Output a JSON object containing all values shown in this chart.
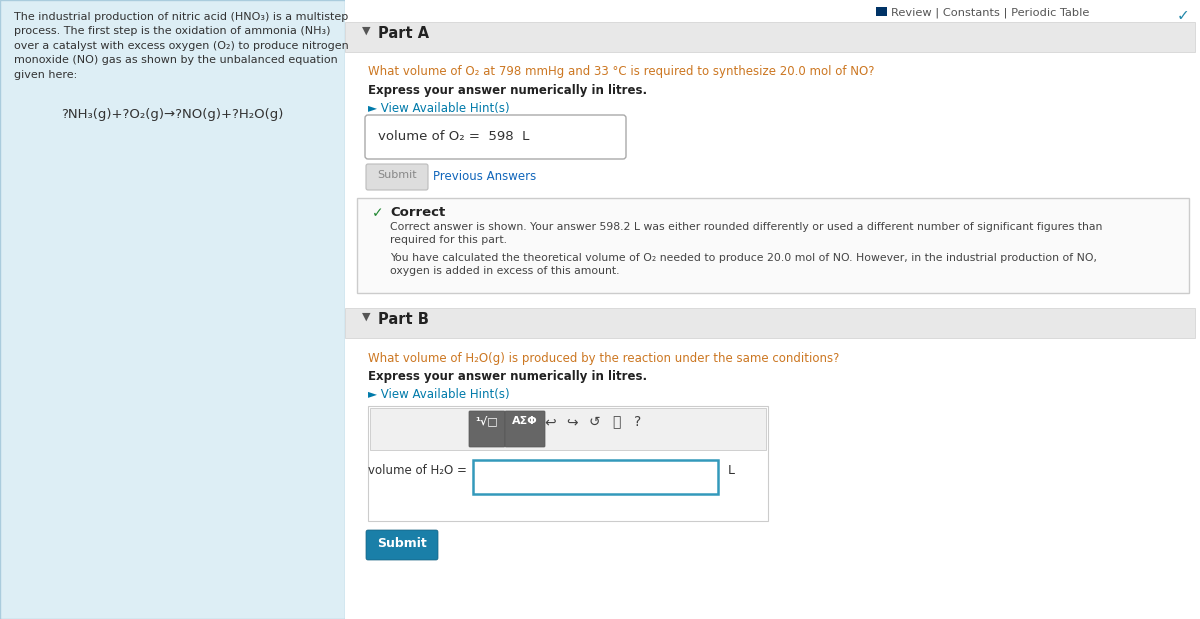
{
  "fig_w": 12.0,
  "fig_h": 6.19,
  "dpi": 100,
  "left_panel_bg": "#ddeef5",
  "left_panel_border": "#aaccdd",
  "right_bg": "#ffffff",
  "outer_bg": "#f0f0f0",
  "section_header_bg": "#e8e8e8",
  "section_header_border": "#d0d0d0",
  "correct_box_bg": "#fafafa",
  "correct_box_border": "#cccccc",
  "input_outer_bg": "#ffffff",
  "input_outer_border": "#cccccc",
  "toolbar_bg": "#f0f0f0",
  "toolbar_border": "#c0c0c0",
  "dark_btn_bg": "#666666",
  "dark_btn_border": "#555555",
  "input_field_border": "#3399bb",
  "submit2_bg": "#1a7fa8",
  "submit2_border": "#156080",
  "submit1_bg": "#dddddd",
  "submit1_border": "#bbbbbb",
  "text_dark": "#222222",
  "text_medium": "#444444",
  "text_light": "#666666",
  "text_question": "#cc7722",
  "hint_color": "#007aaa",
  "prev_answers_color": "#1166bb",
  "correct_green": "#228833",
  "checkmark_teal": "#2288aa",
  "top_link_color": "#555555",
  "top_icon_color": "#003366",
  "left_text": "The industrial production of nitric acid (HNO₃) is a multistep\nprocess. The first step is the oxidation of ammonia (NH₃)\nover a catalyst with excess oxygen (O₂) to produce nitrogen\nmonoxide (NO) gas as shown by the unbalanced equation\ngiven here:",
  "equation": "?NH₃(g)+?O₂(g)→?NO(g)+?H₂O(g)",
  "top_links": "Review | Constants | Periodic Table",
  "part_a_title": "Part A",
  "part_b_title": "Part B",
  "q_a": "What volume of O₂ at 798 mmHg and 33 °C is required to synthesize 20.0 mol of NO?",
  "q_b": "What volume of H₂O(g) is produced by the reaction under the same conditions?",
  "bold_instr": "Express your answer numerically in litres.",
  "hint_label": "► View Available Hint(s)",
  "ans_box_text": "volume of O₂ =  598  L",
  "submit_text": "Submit",
  "prev_ans_text": "Previous Answers",
  "correct_title": "✓   Correct",
  "correct_line1": "Correct answer is shown. Your answer 598.2 L was either rounded differently or used a different number of significant figures than",
  "correct_line1b": "required for this part.",
  "correct_line2": "You have calculated the theoretical volume of O₂ needed to produce 20.0 mol of NO. However, in the industrial production of NO,",
  "correct_line2b": "oxygen is added in excess of this amount.",
  "input_label": "volume of H₂O =",
  "unit_l": "L",
  "toolbar_symbols": [
    "↩",
    "↪",
    "↺",
    "⎖",
    "?"
  ]
}
